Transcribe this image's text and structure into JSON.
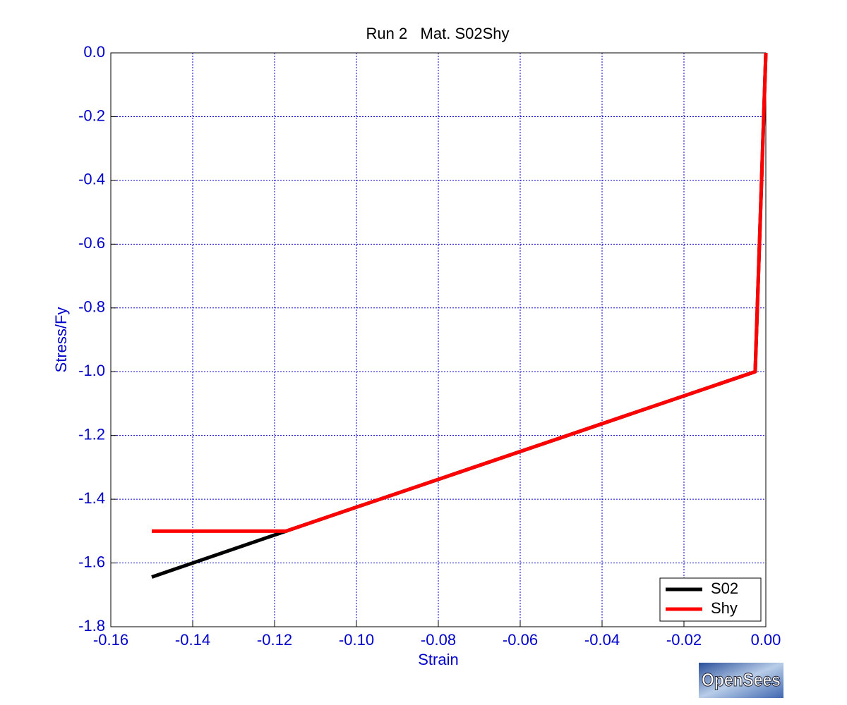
{
  "chart_data": {
    "type": "line",
    "title": "Run 2   Mat. S02Shy",
    "xlabel": "Strain",
    "ylabel": "Stress/Fy",
    "xlim": [
      -0.16,
      0
    ],
    "ylim": [
      -1.8,
      0
    ],
    "xticks": [
      -0.16,
      -0.14,
      -0.12,
      {
        "value": -0.1,
        "label": "-0.10"
      },
      -0.08,
      -0.06,
      -0.04,
      -0.02,
      {
        "value": 0,
        "label": "0.00"
      }
    ],
    "yticks": [
      {
        "value": 0,
        "label": "0.0"
      },
      -0.2,
      -0.4,
      -0.6,
      -0.8,
      {
        "value": -1.0,
        "label": "-1.0"
      },
      -1.2,
      -1.4,
      -1.6,
      -1.8
    ],
    "grid": true,
    "legend": "lower right",
    "series": [
      {
        "name": "S02",
        "color": "#000000",
        "x": [
          0,
          -0.0026,
          -0.1172,
          -0.15
        ],
        "values": [
          0,
          -1.0,
          -1.5,
          -1.644
        ]
      },
      {
        "name": "Shy",
        "color": "#ff0000",
        "x": [
          0,
          -0.0026,
          -0.1172,
          -0.15
        ],
        "values": [
          0,
          -1.0,
          -1.5,
          -1.5
        ]
      }
    ],
    "logo": "OpenSees"
  }
}
